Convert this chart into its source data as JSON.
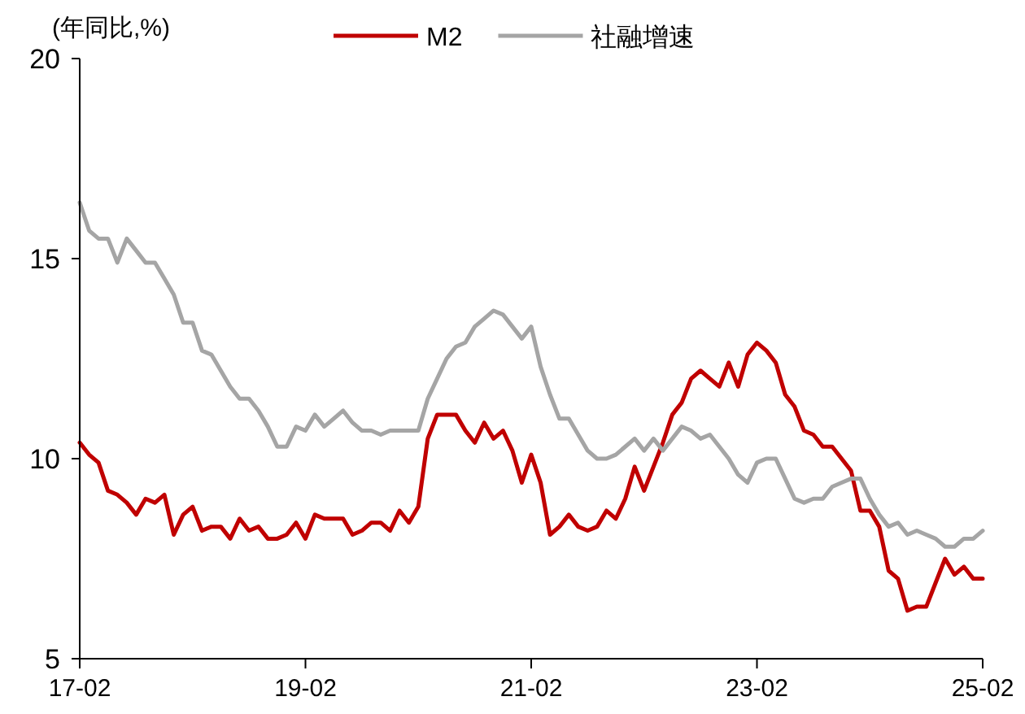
{
  "chart_data": {
    "type": "line",
    "ylabel": "(年同比,%)",
    "categories": [
      "17-02",
      null,
      null,
      null,
      null,
      null,
      null,
      null,
      null,
      null,
      null,
      null,
      null,
      null,
      null,
      null,
      null,
      null,
      null,
      null,
      null,
      null,
      null,
      null,
      "19-02",
      null,
      null,
      null,
      null,
      null,
      null,
      null,
      null,
      null,
      null,
      null,
      null,
      null,
      null,
      null,
      null,
      null,
      null,
      null,
      null,
      null,
      null,
      null,
      "21-02",
      null,
      null,
      null,
      null,
      null,
      null,
      null,
      null,
      null,
      null,
      null,
      null,
      null,
      null,
      null,
      null,
      null,
      null,
      null,
      null,
      null,
      null,
      null,
      "23-02",
      null,
      null,
      null,
      null,
      null,
      null,
      null,
      null,
      null,
      null,
      null,
      null,
      null,
      null,
      null,
      null,
      null,
      null,
      null,
      null,
      null,
      null,
      null,
      "25-02"
    ],
    "series": [
      {
        "name": "M2",
        "color": "#c00000",
        "values": [
          10.4,
          10.1,
          9.9,
          9.2,
          9.1,
          8.9,
          8.6,
          9.0,
          8.9,
          9.1,
          8.1,
          8.6,
          8.8,
          8.2,
          8.3,
          8.3,
          8.0,
          8.5,
          8.2,
          8.3,
          8.0,
          8.0,
          8.1,
          8.4,
          8.0,
          8.6,
          8.5,
          8.5,
          8.5,
          8.1,
          8.2,
          8.4,
          8.4,
          8.2,
          8.7,
          8.4,
          8.8,
          10.5,
          11.1,
          11.1,
          11.1,
          10.7,
          10.4,
          10.9,
          10.5,
          10.7,
          10.2,
          9.4,
          10.1,
          9.4,
          8.1,
          8.3,
          8.6,
          8.3,
          8.2,
          8.3,
          8.7,
          8.5,
          9.0,
          9.8,
          9.2,
          9.8,
          10.4,
          11.1,
          11.4,
          12.0,
          12.2,
          12.0,
          11.8,
          12.4,
          11.8,
          12.6,
          12.9,
          12.7,
          12.4,
          11.6,
          11.3,
          10.7,
          10.6,
          10.3,
          10.3,
          10.0,
          9.7,
          8.7,
          8.7,
          8.3,
          7.2,
          7.0,
          6.2,
          6.3,
          6.3,
          6.9,
          7.5,
          7.1,
          7.3,
          7.0,
          7.0
        ]
      },
      {
        "name": "社融增速",
        "color": "#a5a5a5",
        "values": [
          16.4,
          15.7,
          15.5,
          15.5,
          14.9,
          15.5,
          15.2,
          14.9,
          14.9,
          14.5,
          14.1,
          13.4,
          13.4,
          12.7,
          12.6,
          12.2,
          11.8,
          11.5,
          11.5,
          11.2,
          10.8,
          10.3,
          10.3,
          10.8,
          10.7,
          11.1,
          10.8,
          11.0,
          11.2,
          10.9,
          10.7,
          10.7,
          10.6,
          10.7,
          10.7,
          10.7,
          10.7,
          11.5,
          12.0,
          12.5,
          12.8,
          12.9,
          13.3,
          13.5,
          13.7,
          13.6,
          13.3,
          13.0,
          13.3,
          12.3,
          11.6,
          11.0,
          11.0,
          10.6,
          10.2,
          10.0,
          10.0,
          10.1,
          10.3,
          10.5,
          10.2,
          10.5,
          10.2,
          10.5,
          10.8,
          10.7,
          10.5,
          10.6,
          10.3,
          10.0,
          9.6,
          9.4,
          9.9,
          10.0,
          10.0,
          9.5,
          9.0,
          8.9,
          9.0,
          9.0,
          9.3,
          9.4,
          9.5,
          9.5,
          9.0,
          8.6,
          8.3,
          8.4,
          8.1,
          8.2,
          8.1,
          8.0,
          7.8,
          7.8,
          8.0,
          8.0,
          8.2
        ]
      }
    ],
    "ylim": [
      5,
      20
    ],
    "yticks": [
      5,
      10,
      15,
      20
    ],
    "legend": "top",
    "grid": false,
    "marker": "none",
    "line_style": "solid"
  }
}
